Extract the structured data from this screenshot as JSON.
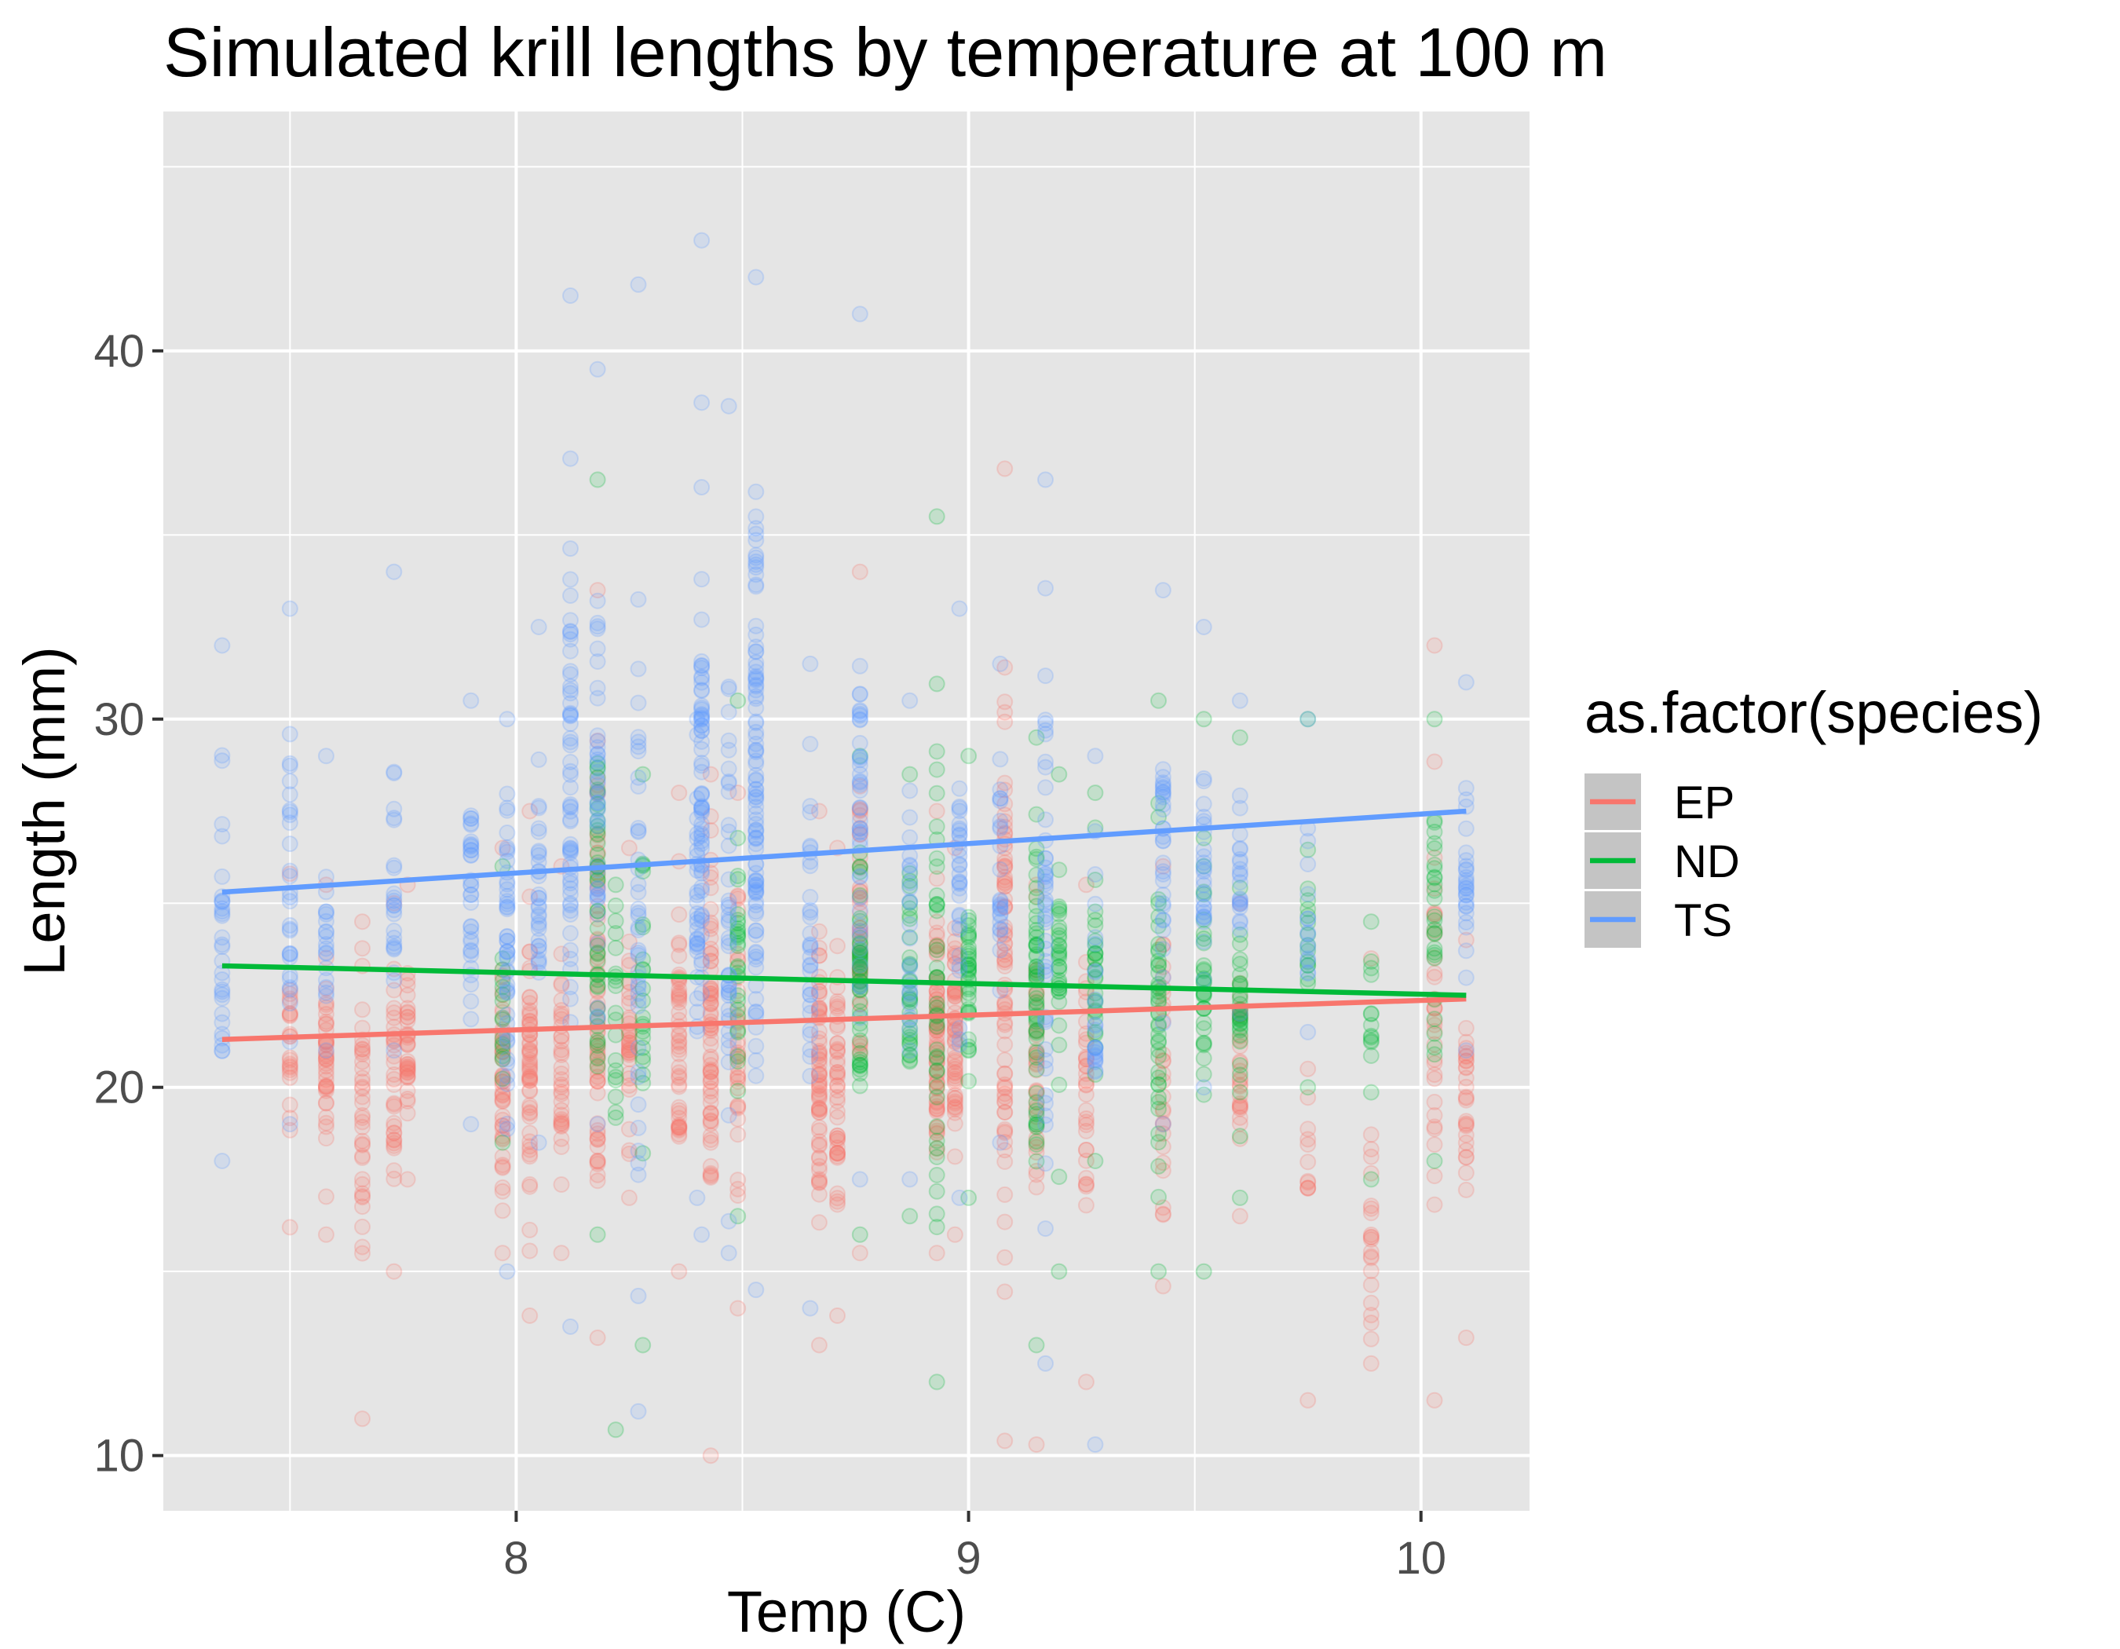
{
  "chart_data": {
    "type": "scatter",
    "title": "Simulated krill lengths by temperature at 100 m",
    "xlabel": "Temp (C)",
    "ylabel": "Length (mm)",
    "xlim": [
      7.22,
      10.24
    ],
    "ylim": [
      8.5,
      46.5
    ],
    "x_ticks": [
      8,
      9,
      10
    ],
    "x_tick_labels": [
      "8",
      "9",
      "10"
    ],
    "y_ticks": [
      10,
      20,
      30,
      40
    ],
    "y_tick_labels": [
      "10",
      "20",
      "30",
      "40"
    ],
    "grid": true,
    "point_alpha": 0.15,
    "legend": {
      "title": "as.factor(species)",
      "placement": "right"
    },
    "series": [
      {
        "name": "EP",
        "color": "#F8766D",
        "trend": {
          "x": [
            7.35,
            10.1
          ],
          "y": [
            21.3,
            22.4
          ]
        },
        "columns": [
          {
            "x": 7.5,
            "min": 16.2,
            "max": 25.8,
            "mean": 21.0,
            "n": 22
          },
          {
            "x": 7.58,
            "min": 16.0,
            "max": 25.5,
            "mean": 20.5,
            "n": 40
          },
          {
            "x": 7.66,
            "min": 11.0,
            "max": 24.5,
            "mean": 19.5,
            "n": 36
          },
          {
            "x": 7.73,
            "min": 15.0,
            "max": 25.0,
            "mean": 20.2,
            "n": 30
          },
          {
            "x": 7.76,
            "min": 17.5,
            "max": 25.5,
            "mean": 20.8,
            "n": 34
          },
          {
            "x": 7.97,
            "min": 15.5,
            "max": 26.5,
            "mean": 20.5,
            "n": 48
          },
          {
            "x": 8.03,
            "min": 13.8,
            "max": 27.5,
            "mean": 20.5,
            "n": 54
          },
          {
            "x": 8.1,
            "min": 15.5,
            "max": 26.0,
            "mean": 20.5,
            "n": 34
          },
          {
            "x": 8.18,
            "min": 13.2,
            "max": 33.5,
            "mean": 22.5,
            "n": 70
          },
          {
            "x": 8.25,
            "min": 17.0,
            "max": 26.5,
            "mean": 21.5,
            "n": 34
          },
          {
            "x": 8.36,
            "min": 15.0,
            "max": 28.0,
            "mean": 21.5,
            "n": 46
          },
          {
            "x": 8.43,
            "min": 10.0,
            "max": 28.5,
            "mean": 21.5,
            "n": 66
          },
          {
            "x": 8.49,
            "min": 14.0,
            "max": 28.0,
            "mean": 21.0,
            "n": 34
          },
          {
            "x": 8.67,
            "min": 13.0,
            "max": 27.5,
            "mean": 20.0,
            "n": 60
          },
          {
            "x": 8.71,
            "min": 13.8,
            "max": 26.5,
            "mean": 19.5,
            "n": 44
          },
          {
            "x": 8.76,
            "min": 15.5,
            "max": 34.0,
            "mean": 23.5,
            "n": 44
          },
          {
            "x": 8.93,
            "min": 15.5,
            "max": 27.5,
            "mean": 21.5,
            "n": 70
          },
          {
            "x": 8.97,
            "min": 16.0,
            "max": 26.5,
            "mean": 21.5,
            "n": 54
          },
          {
            "x": 9.08,
            "min": 10.4,
            "max": 36.8,
            "mean": 23.0,
            "n": 76
          },
          {
            "x": 9.15,
            "min": 10.3,
            "max": 25.5,
            "mean": 20.5,
            "n": 36
          },
          {
            "x": 9.26,
            "min": 12.0,
            "max": 25.5,
            "mean": 20.5,
            "n": 32
          },
          {
            "x": 9.43,
            "min": 14.6,
            "max": 26.0,
            "mean": 20.5,
            "n": 26
          },
          {
            "x": 9.6,
            "min": 16.5,
            "max": 25.0,
            "mean": 20.5,
            "n": 28
          },
          {
            "x": 9.75,
            "min": 11.5,
            "max": 20.5,
            "mean": 18.5,
            "n": 10
          },
          {
            "x": 9.89,
            "min": 12.5,
            "max": 23.5,
            "mean": 16.0,
            "n": 20
          },
          {
            "x": 10.03,
            "min": 11.5,
            "max": 32.0,
            "mean": 22.5,
            "n": 30
          },
          {
            "x": 10.1,
            "min": 13.2,
            "max": 24.0,
            "mean": 20.0,
            "n": 26
          }
        ]
      },
      {
        "name": "ND",
        "color": "#00BA38",
        "trend": {
          "x": [
            7.35,
            10.1
          ],
          "y": [
            23.3,
            22.5
          ]
        },
        "columns": [
          {
            "x": 7.97,
            "min": 18.5,
            "max": 26.0,
            "mean": 22.0,
            "n": 14
          },
          {
            "x": 8.18,
            "min": 16.0,
            "max": 36.5,
            "mean": 24.5,
            "n": 40
          },
          {
            "x": 8.22,
            "min": 10.7,
            "max": 25.5,
            "mean": 22.0,
            "n": 18
          },
          {
            "x": 8.28,
            "min": 13.0,
            "max": 28.5,
            "mean": 22.5,
            "n": 22
          },
          {
            "x": 8.49,
            "min": 16.5,
            "max": 30.5,
            "mean": 23.0,
            "n": 26
          },
          {
            "x": 8.76,
            "min": 16.0,
            "max": 29.0,
            "mean": 23.0,
            "n": 44
          },
          {
            "x": 8.87,
            "min": 16.5,
            "max": 28.5,
            "mean": 23.0,
            "n": 30
          },
          {
            "x": 8.93,
            "min": 12.0,
            "max": 35.5,
            "mean": 22.5,
            "n": 40
          },
          {
            "x": 9.0,
            "min": 17.0,
            "max": 29.0,
            "mean": 23.0,
            "n": 34
          },
          {
            "x": 9.15,
            "min": 13.0,
            "max": 29.5,
            "mean": 23.0,
            "n": 54
          },
          {
            "x": 9.2,
            "min": 15.0,
            "max": 28.5,
            "mean": 22.5,
            "n": 30
          },
          {
            "x": 9.28,
            "min": 18.0,
            "max": 28.0,
            "mean": 23.0,
            "n": 26
          },
          {
            "x": 9.42,
            "min": 15.0,
            "max": 30.5,
            "mean": 22.5,
            "n": 40
          },
          {
            "x": 9.52,
            "min": 15.0,
            "max": 30.0,
            "mean": 22.5,
            "n": 30
          },
          {
            "x": 9.6,
            "min": 17.0,
            "max": 29.5,
            "mean": 22.5,
            "n": 28
          },
          {
            "x": 9.75,
            "min": 20.0,
            "max": 30.0,
            "mean": 24.0,
            "n": 14
          },
          {
            "x": 9.89,
            "min": 17.5,
            "max": 24.5,
            "mean": 21.5,
            "n": 12
          },
          {
            "x": 10.03,
            "min": 18.0,
            "max": 30.0,
            "mean": 24.5,
            "n": 26
          }
        ]
      },
      {
        "name": "TS",
        "color": "#619CFF",
        "trend": {
          "x": [
            7.35,
            10.1
          ],
          "y": [
            25.3,
            27.5
          ]
        },
        "columns": [
          {
            "x": 7.35,
            "min": 18.0,
            "max": 32.0,
            "mean": 25.0,
            "n": 30
          },
          {
            "x": 7.5,
            "min": 19.0,
            "max": 33.0,
            "mean": 25.5,
            "n": 28
          },
          {
            "x": 7.58,
            "min": 21.0,
            "max": 29.0,
            "mean": 24.5,
            "n": 18
          },
          {
            "x": 7.73,
            "min": 21.0,
            "max": 34.0,
            "mean": 26.0,
            "n": 22
          },
          {
            "x": 7.9,
            "min": 19.0,
            "max": 30.5,
            "mean": 25.0,
            "n": 32
          },
          {
            "x": 7.98,
            "min": 15.0,
            "max": 30.0,
            "mean": 24.0,
            "n": 44
          },
          {
            "x": 8.05,
            "min": 18.5,
            "max": 32.5,
            "mean": 25.0,
            "n": 30
          },
          {
            "x": 8.12,
            "min": 13.5,
            "max": 41.5,
            "mean": 27.5,
            "n": 58
          },
          {
            "x": 8.18,
            "min": 19.0,
            "max": 39.5,
            "mean": 27.0,
            "n": 40
          },
          {
            "x": 8.27,
            "min": 11.2,
            "max": 41.8,
            "mean": 25.0,
            "n": 40
          },
          {
            "x": 8.4,
            "min": 17.0,
            "max": 30.0,
            "mean": 24.5,
            "n": 28
          },
          {
            "x": 8.41,
            "min": 16.0,
            "max": 43.0,
            "mean": 28.0,
            "n": 60
          },
          {
            "x": 8.47,
            "min": 15.5,
            "max": 38.5,
            "mean": 25.0,
            "n": 40
          },
          {
            "x": 8.53,
            "min": 14.5,
            "max": 42.0,
            "mean": 28.5,
            "n": 96
          },
          {
            "x": 8.65,
            "min": 14.0,
            "max": 31.5,
            "mean": 24.0,
            "n": 30
          },
          {
            "x": 8.76,
            "min": 17.5,
            "max": 41.0,
            "mean": 27.0,
            "n": 40
          },
          {
            "x": 8.87,
            "min": 17.5,
            "max": 30.5,
            "mean": 24.5,
            "n": 24
          },
          {
            "x": 8.98,
            "min": 17.0,
            "max": 33.0,
            "mean": 25.5,
            "n": 30
          },
          {
            "x": 9.07,
            "min": 18.5,
            "max": 31.5,
            "mean": 25.5,
            "n": 24
          },
          {
            "x": 9.17,
            "min": 12.5,
            "max": 36.5,
            "mean": 24.5,
            "n": 44
          },
          {
            "x": 9.28,
            "min": 10.3,
            "max": 29.0,
            "mean": 23.0,
            "n": 24
          },
          {
            "x": 9.43,
            "min": 19.0,
            "max": 33.5,
            "mean": 26.0,
            "n": 30
          },
          {
            "x": 9.52,
            "min": 20.0,
            "max": 32.5,
            "mean": 25.5,
            "n": 26
          },
          {
            "x": 9.6,
            "min": 22.0,
            "max": 30.5,
            "mean": 26.0,
            "n": 20
          },
          {
            "x": 9.75,
            "min": 21.5,
            "max": 30.0,
            "mean": 25.0,
            "n": 14
          },
          {
            "x": 10.1,
            "min": 21.0,
            "max": 31.0,
            "mean": 26.0,
            "n": 26
          }
        ]
      }
    ]
  },
  "colors": {
    "panel_background": "#E5E5E5",
    "grid_line": "#FFFFFF",
    "legend_key_background": "#C4C4C4"
  }
}
